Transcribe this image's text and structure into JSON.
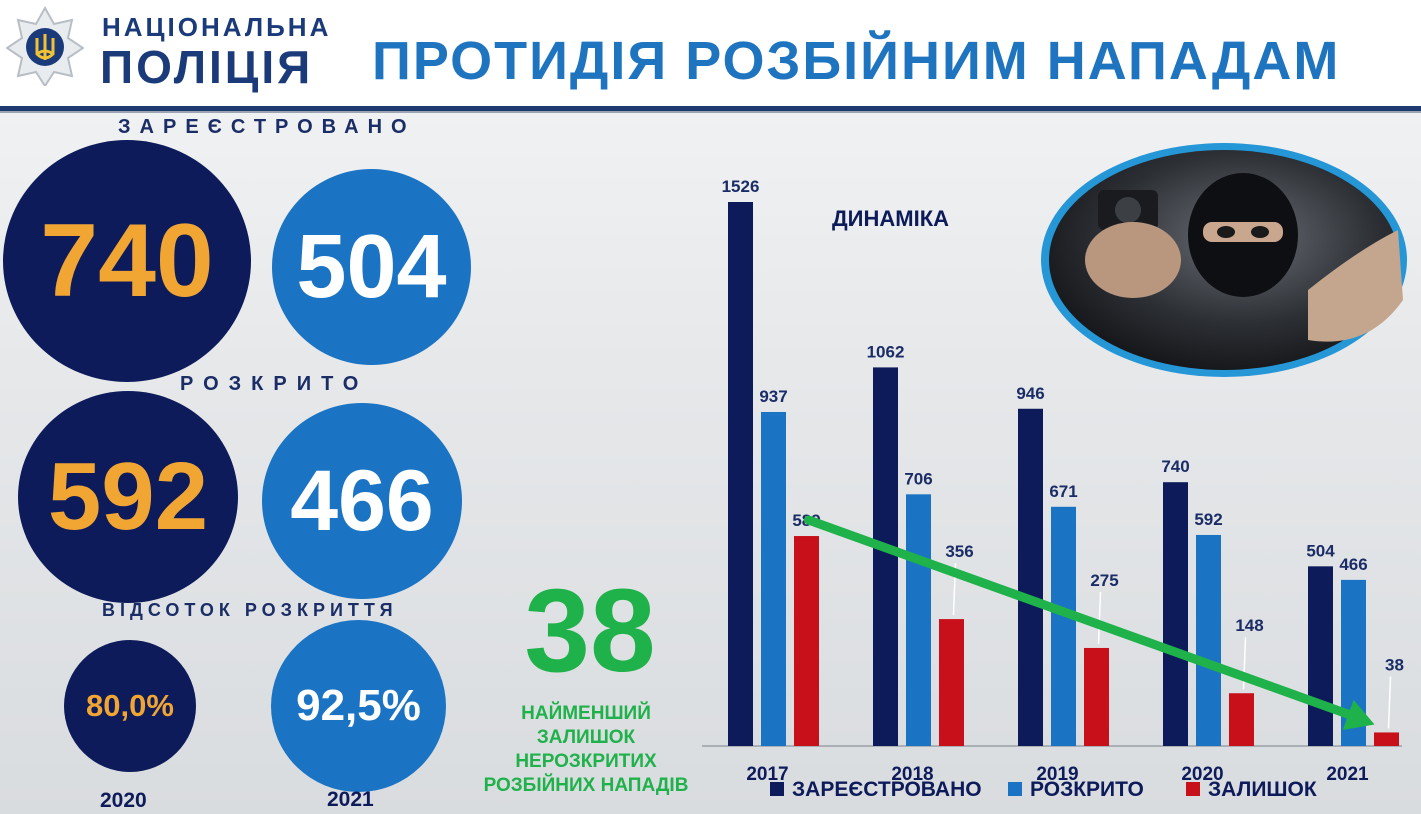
{
  "header": {
    "org_line1": "НАЦІОНАЛЬНА",
    "org_line2": "ПОЛІЦІЯ",
    "title": "ПРОТИДІЯ РОЗБІЙНИМ НАПАДАМ"
  },
  "summary": {
    "registered_label": "ЗАРЕЄСТРОВАНО",
    "registered_2020": "740",
    "registered_2021": "504",
    "solved_label": "РОЗКРИТО",
    "solved_2020": "592",
    "solved_2021": "466",
    "rate_label": "ВІДСОТОК РОЗКРИТТЯ",
    "rate_2020": "80,0%",
    "rate_2021": "92,5%",
    "year_2020": "2020",
    "year_2021": "2021"
  },
  "callout": {
    "value": "38",
    "line1": "НАЙМЕНШИЙ",
    "line2": "ЗАЛИШОК",
    "line3": "НЕРОЗКРИТИХ",
    "line4": "РОЗБІЙНИХ НАПАДІВ"
  },
  "colors": {
    "navy": "#0d1b5a",
    "blue": "#1b73c4",
    "red": "#c8101a",
    "gold": "#f1a533",
    "green": "#1fb24a"
  },
  "chart_data": {
    "type": "bar",
    "title": "ДИНАМІКА",
    "categories": [
      "2017",
      "2018",
      "2019",
      "2020",
      "2021"
    ],
    "series": [
      {
        "name": "ЗАРЕЄСТРОВАНО",
        "color": "#0d1b5a",
        "values": [
          1526,
          1062,
          946,
          740,
          504
        ]
      },
      {
        "name": "РОЗКРИТО",
        "color": "#1b73c4",
        "values": [
          937,
          706,
          671,
          592,
          466
        ]
      },
      {
        "name": "ЗАЛИШОК",
        "color": "#c8101a",
        "values": [
          589,
          356,
          275,
          148,
          38
        ]
      }
    ],
    "trend": {
      "color": "#1fb24a",
      "from": [
        2017,
        589
      ],
      "to": [
        2021,
        38
      ]
    },
    "ylim": [
      0,
      1526
    ],
    "legend": "bottom",
    "grid": false
  }
}
